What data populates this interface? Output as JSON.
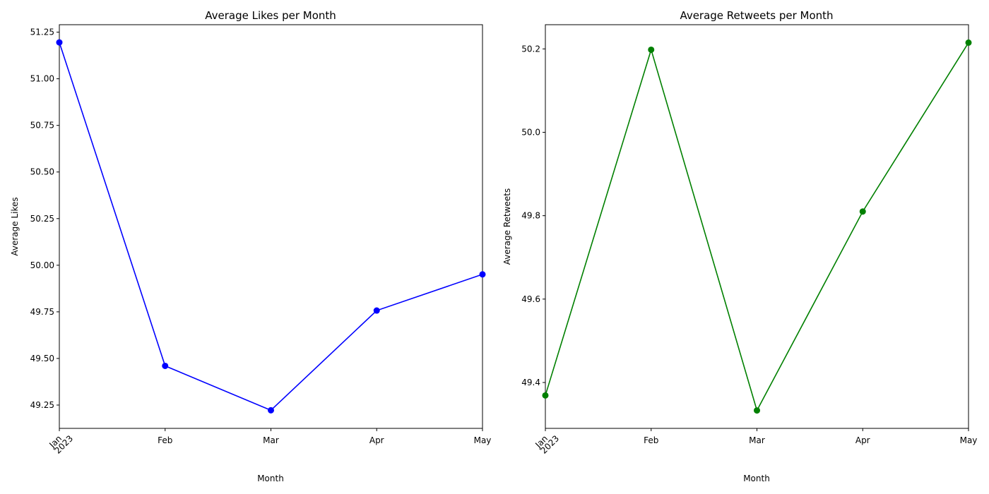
{
  "chart_data": [
    {
      "type": "line",
      "title": "Average Likes per Month",
      "xlabel": "Month",
      "ylabel": "Average Likes",
      "categories": [
        "Jan",
        "Feb",
        "Mar",
        "Apr",
        "May"
      ],
      "year_label": "2023",
      "series": [
        {
          "values": [
            51.195,
            49.46,
            49.222,
            49.757,
            49.951
          ],
          "color": "#0000ff"
        }
      ],
      "ylim": [
        49.125,
        51.29
      ],
      "yticks": [
        "49.25",
        "49.50",
        "49.75",
        "50.00",
        "50.25",
        "50.50",
        "50.75",
        "51.00",
        "51.25"
      ],
      "grid": false
    },
    {
      "type": "line",
      "title": "Average Retweets per Month",
      "xlabel": "Month",
      "ylabel": "Average Retweets",
      "categories": [
        "Jan",
        "Feb",
        "Mar",
        "Apr",
        "May"
      ],
      "year_label": "2023",
      "series": [
        {
          "values": [
            49.369,
            50.198,
            49.333,
            49.81,
            50.215
          ],
          "color": "#008000"
        }
      ],
      "ylim": [
        49.29,
        50.258
      ],
      "yticks": [
        "49.4",
        "49.6",
        "49.8",
        "50.0",
        "50.2"
      ],
      "grid": false
    }
  ]
}
